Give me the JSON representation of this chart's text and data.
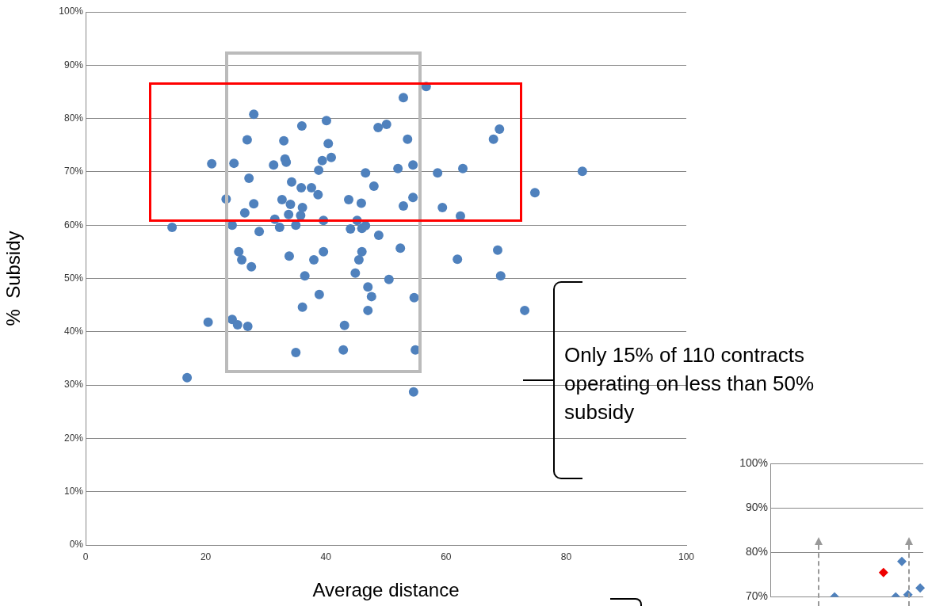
{
  "chart_data": [
    {
      "type": "scatter",
      "xlabel": "Average distance",
      "ylabel": "%  Subsidy",
      "color": "#4f81bd",
      "marker": "circle",
      "grid": "y",
      "xlim": [
        0,
        100
      ],
      "xticks": [
        0,
        20,
        40,
        60,
        80,
        100
      ],
      "ylim": [
        0,
        100
      ],
      "yticks": [
        {
          "value": 0,
          "label": "0%"
        },
        {
          "value": 10,
          "label": "10%"
        },
        {
          "value": 20,
          "label": "20%"
        },
        {
          "value": 30,
          "label": "30%"
        },
        {
          "value": 40,
          "label": "40%"
        },
        {
          "value": 50,
          "label": "50%"
        },
        {
          "value": 60,
          "label": "60%"
        },
        {
          "value": 70,
          "label": "70%"
        },
        {
          "value": 80,
          "label": "80%"
        },
        {
          "value": 90,
          "label": "90%"
        },
        {
          "value": 100,
          "label": "100%"
        }
      ],
      "x": [
        28.0,
        36.0,
        26.9,
        33.0,
        21.0,
        24.7,
        31.3,
        33.2,
        33.4,
        27.2,
        34.3,
        35.9,
        23.4,
        28.0,
        32.7,
        34.1,
        36.1,
        26.5,
        33.8,
        35.8,
        31.5,
        32.3,
        35.0,
        14.4,
        24.4,
        28.9,
        25.5,
        26.0,
        27.6,
        33.9,
        36.5,
        36.1,
        20.4,
        24.4,
        25.3,
        27.0,
        35.0,
        16.9,
        40.1,
        52.9,
        56.7,
        48.7,
        50.1,
        53.6,
        40.4,
        39.4,
        40.9,
        38.8,
        46.6,
        52.0,
        54.5,
        58.6,
        37.6,
        38.7,
        48.0,
        43.8,
        45.9,
        52.9,
        54.5,
        59.4,
        39.6,
        45.2,
        44.1,
        46.0,
        46.6,
        48.8,
        52.4,
        38.0,
        39.6,
        46.0,
        45.5,
        44.9,
        50.5,
        47.0,
        47.6,
        54.7,
        38.9,
        47.0,
        43.1,
        42.9,
        54.9,
        54.6,
        68.9,
        67.9,
        62.8,
        82.7,
        74.8,
        62.4,
        61.9,
        68.6,
        69.1,
        73.1
      ],
      "values": [
        80.8,
        78.6,
        76.0,
        75.8,
        71.5,
        71.6,
        71.3,
        72.4,
        71.8,
        68.8,
        68.1,
        67.0,
        64.9,
        64.0,
        64.8,
        63.9,
        63.3,
        62.3,
        62.0,
        61.8,
        61.1,
        59.6,
        60.0,
        59.6,
        60.0,
        58.8,
        55.0,
        53.5,
        52.2,
        54.2,
        50.5,
        44.6,
        41.8,
        42.3,
        41.3,
        41.0,
        36.1,
        31.4,
        79.6,
        83.9,
        86.0,
        78.3,
        78.9,
        76.1,
        75.3,
        72.1,
        72.7,
        70.3,
        69.8,
        70.6,
        71.3,
        69.8,
        67.0,
        65.7,
        67.3,
        64.8,
        64.1,
        63.6,
        65.2,
        63.3,
        60.9,
        60.9,
        59.3,
        59.4,
        59.9,
        58.1,
        55.7,
        53.5,
        55.0,
        55.0,
        53.5,
        51.0,
        49.8,
        48.4,
        46.6,
        46.4,
        47.0,
        44.0,
        41.2,
        36.6,
        36.6,
        28.7,
        78.0,
        76.1,
        70.6,
        70.1,
        66.1,
        61.7,
        53.6,
        55.3,
        50.5,
        44.0
      ],
      "annotations": [
        "Only 15% of  110 contracts operating on less than 50% subsidy"
      ]
    },
    {
      "type": "scatter",
      "marker": "diamond",
      "grid": "y",
      "tick_labels": "y",
      "categories": [
        null,
        null,
        null,
        null,
        null,
        null,
        null,
        null,
        null,
        null,
        null,
        null,
        null,
        null,
        null,
        null,
        null,
        null,
        null,
        null,
        null,
        null,
        null,
        null,
        null
      ],
      "ylim": [
        70,
        100
      ],
      "yticks": [
        {
          "value": 70,
          "label": "70%"
        },
        {
          "value": 80,
          "label": "80%"
        },
        {
          "value": 90,
          "label": "90%"
        },
        {
          "value": 100,
          "label": "100%"
        }
      ],
      "values": [
        null,
        null,
        null,
        null,
        null,
        null,
        null,
        null,
        null,
        null,
        70,
        null,
        null,
        null,
        null,
        null,
        null,
        null,
        75.5,
        null,
        70,
        78,
        70.5,
        null,
        72
      ],
      "colors": [
        "#4f81bd",
        "#4f81bd",
        "#4f81bd",
        "#4f81bd",
        "#4f81bd",
        "#4f81bd",
        "#4f81bd",
        "#4f81bd",
        "#4f81bd",
        "#4f81bd",
        "#4f81bd",
        "#4f81bd",
        "#4f81bd",
        "#4f81bd",
        "#4f81bd",
        "#4f81bd",
        "#4f81bd",
        "#4f81bd",
        "#ee0000",
        "#4f81bd",
        "#4f81bd",
        "#4f81bd",
        "#4f81bd",
        "#4f81bd",
        "#4f81bd"
      ]
    }
  ]
}
